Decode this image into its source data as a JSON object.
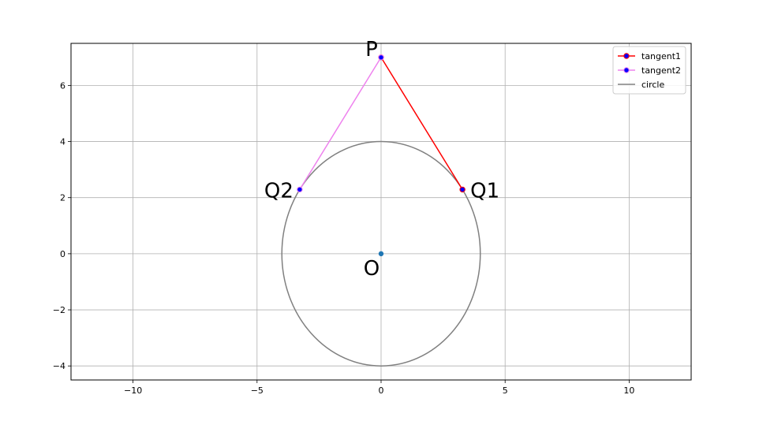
{
  "chart_data": {
    "type": "scatter",
    "title": "",
    "xlabel": "",
    "ylabel": "",
    "xlim": [
      -12.5,
      12.5
    ],
    "ylim": [
      -4.5,
      7.5
    ],
    "grid": true,
    "x_ticks": [
      {
        "value": -10,
        "label": "−10"
      },
      {
        "value": -5,
        "label": "−5"
      },
      {
        "value": 0,
        "label": "0"
      },
      {
        "value": 5,
        "label": "5"
      },
      {
        "value": 10,
        "label": "10"
      }
    ],
    "y_ticks": [
      {
        "value": -4,
        "label": "−4"
      },
      {
        "value": -2,
        "label": "−2"
      },
      {
        "value": 0,
        "label": "0"
      },
      {
        "value": 2,
        "label": "2"
      },
      {
        "value": 4,
        "label": "4"
      },
      {
        "value": 6,
        "label": "6"
      }
    ],
    "series": [
      {
        "name": "tangent1",
        "color": "#ff0000",
        "marker_color": "#0000ff",
        "points": [
          [
            0,
            7
          ],
          [
            3.28,
            2.29
          ]
        ]
      },
      {
        "name": "tangent2",
        "color": "#ee82ee",
        "marker_color": "#0000ff",
        "points": [
          [
            0,
            7
          ],
          [
            -3.28,
            2.29
          ]
        ]
      },
      {
        "name": "circle",
        "color": "#808080",
        "center": [
          0,
          0
        ],
        "radius": 4
      }
    ],
    "center_point": {
      "x": 0,
      "y": 0,
      "color": "#1f77b4"
    },
    "annotations": [
      {
        "text": "P",
        "x": 0,
        "y": 7
      },
      {
        "text": "Q1",
        "x": 3.28,
        "y": 2.29
      },
      {
        "text": "Q2",
        "x": -3.28,
        "y": 2.29
      },
      {
        "text": "O",
        "x": 0,
        "y": 0
      }
    ],
    "legend_position": "top-right"
  }
}
